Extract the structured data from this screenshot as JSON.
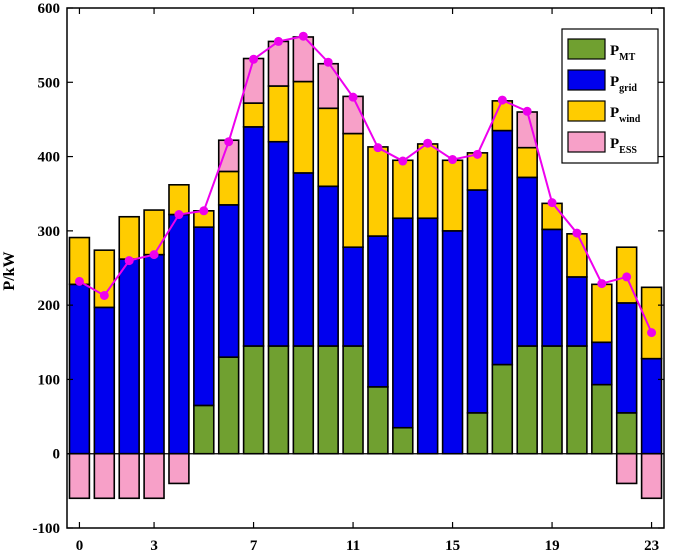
{
  "chart_data": {
    "type": "bar",
    "stacked": true,
    "title": "",
    "xlabel": "",
    "ylabel": "P/kW",
    "ylim": [
      -100,
      600
    ],
    "yticks": [
      -100,
      0,
      100,
      200,
      300,
      400,
      500,
      600
    ],
    "xlim": [
      -0.5,
      23.5
    ],
    "xticks": [
      0,
      3,
      7,
      11,
      15,
      19,
      23
    ],
    "grid": false,
    "legend_position": "top-right",
    "x": [
      0,
      1,
      2,
      3,
      4,
      5,
      6,
      7,
      8,
      9,
      10,
      11,
      12,
      13,
      14,
      15,
      16,
      17,
      18,
      19,
      20,
      21,
      22,
      23
    ],
    "series": [
      {
        "name": "MT",
        "legend_main": "P",
        "legend_sub": "MT",
        "color": "#70a030",
        "values": [
          0,
          0,
          0,
          0,
          0,
          65,
          130,
          145,
          145,
          145,
          145,
          145,
          90,
          35,
          0,
          0,
          55,
          120,
          145,
          145,
          145,
          93,
          55,
          0
        ]
      },
      {
        "name": "grid",
        "legend_main": "P",
        "legend_sub": "grid",
        "color": "#0000ee",
        "values": [
          228,
          197,
          262,
          268,
          322,
          240,
          205,
          295,
          275,
          233,
          215,
          133,
          203,
          282,
          317,
          300,
          300,
          315,
          227,
          157,
          93,
          57,
          148,
          128
        ]
      },
      {
        "name": "wind",
        "legend_main": "P",
        "legend_sub": "wind",
        "color": "#ffcc00",
        "values": [
          63,
          77,
          57,
          60,
          40,
          22,
          45,
          32,
          75,
          123,
          105,
          153,
          120,
          78,
          100,
          95,
          50,
          40,
          40,
          35,
          58,
          78,
          75,
          96
        ]
      },
      {
        "name": "ESS",
        "legend_main": "P",
        "legend_sub": "ESS",
        "color": "#f7a0c8",
        "values": [
          -60,
          -60,
          -60,
          -60,
          -40,
          0,
          42,
          60,
          60,
          60,
          60,
          50,
          0,
          0,
          0,
          0,
          0,
          0,
          48,
          0,
          0,
          0,
          -40,
          -60
        ]
      }
    ],
    "line": {
      "color": "#ee00ee",
      "values": [
        232,
        213,
        260,
        268,
        322,
        327,
        420,
        531,
        555,
        562,
        527,
        480,
        412,
        394,
        418,
        396,
        403,
        476,
        461,
        338,
        297,
        229,
        238,
        163
      ]
    }
  }
}
